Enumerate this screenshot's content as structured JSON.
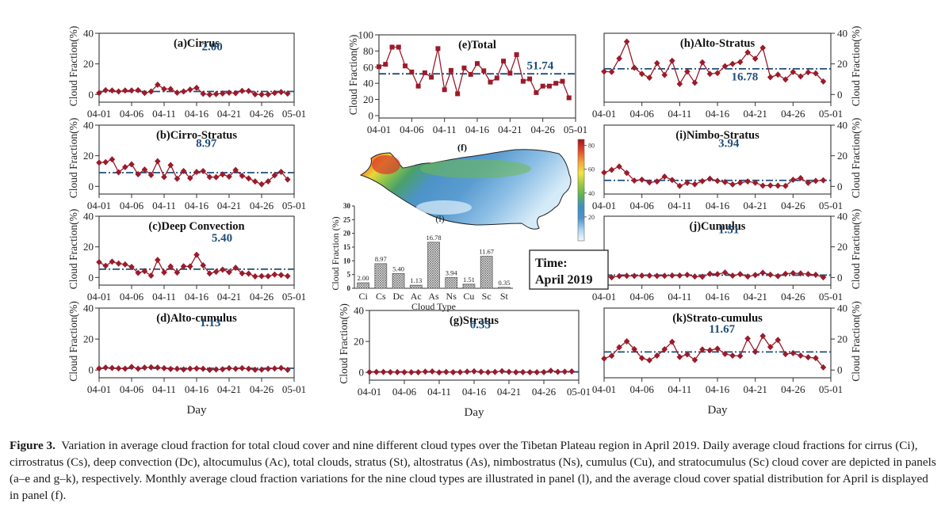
{
  "figure": {
    "day_label": "Day",
    "ylabel": "Cloud Fraction(%)",
    "x_ticks": [
      "04-01",
      "04-06",
      "04-11",
      "04-16",
      "04-21",
      "04-26",
      "05-01"
    ],
    "colors": {
      "series": "#9b1b2a",
      "mean_line": "#1f4e79",
      "mean_text": "#1f4e79"
    }
  },
  "chart_data": [
    {
      "id": "a",
      "type": "line",
      "title": "(a)Cirrus",
      "ylabel": "Cloud Fraction(%)",
      "xlabel": "",
      "ylim": [
        -5,
        40
      ],
      "yticks": [
        0,
        20,
        40
      ],
      "y_axis_side": "left",
      "marker": "diamond",
      "x": [
        "04-01",
        "04-02",
        "04-03",
        "04-04",
        "04-05",
        "04-06",
        "04-07",
        "04-08",
        "04-09",
        "04-10",
        "04-11",
        "04-12",
        "04-13",
        "04-14",
        "04-15",
        "04-16",
        "04-17",
        "04-18",
        "04-19",
        "04-20",
        "04-21",
        "04-22",
        "04-23",
        "04-24",
        "04-25",
        "04-26",
        "04-27",
        "04-28",
        "04-29",
        "04-30"
      ],
      "values": [
        1.0,
        2.8,
        2.6,
        2.0,
        2.6,
        2.6,
        2.8,
        1.0,
        2.0,
        6.4,
        3.6,
        3.6,
        1.2,
        2.0,
        3.2,
        4.4,
        0.5,
        0.0,
        0.3,
        0.7,
        1.2,
        0.9,
        2.4,
        2.3,
        0.2,
        0.0,
        0.1,
        1.0,
        1.6,
        0.6
      ],
      "mean": 2.0,
      "mean_label": "2.00"
    },
    {
      "id": "b",
      "type": "line",
      "title": "(b)Cirro-Stratus",
      "ylabel": "Cloud Fraction(%)",
      "xlabel": "",
      "ylim": [
        -5,
        40
      ],
      "yticks": [
        0,
        20,
        40
      ],
      "y_axis_side": "left",
      "marker": "diamond",
      "values": [
        15.5,
        15.8,
        17.6,
        9.2,
        12.6,
        14.4,
        7.9,
        11.0,
        7.4,
        16.4,
        6.1,
        13.9,
        5.0,
        10.0,
        5.4,
        9.4,
        10.0,
        6.1,
        6.0,
        7.8,
        6.4,
        10.7,
        6.9,
        5.2,
        3.2,
        1.4,
        3.3,
        7.2,
        9.5,
        4.5
      ],
      "mean": 8.97,
      "mean_label": "8.97"
    },
    {
      "id": "c",
      "type": "line",
      "title": "(c)Deep Convection",
      "ylabel": "Cloud Fraction(%)",
      "xlabel": "",
      "ylim": [
        -5,
        40
      ],
      "yticks": [
        0,
        20,
        40
      ],
      "y_axis_side": "left",
      "marker": "diamond",
      "values": [
        10.0,
        7.6,
        10.3,
        9.1,
        8.5,
        6.9,
        3.0,
        4.1,
        1.2,
        11.4,
        3.3,
        7.2,
        3.2,
        7.3,
        7.2,
        14.8,
        7.9,
        2.6,
        3.7,
        5.1,
        3.5,
        6.3,
        2.7,
        2.5,
        0.7,
        0.9,
        0.8,
        1.9,
        1.6,
        0.9
      ],
      "mean": 5.4,
      "mean_label": "5.40"
    },
    {
      "id": "d",
      "type": "line",
      "title": "(d)Alto-cumulus",
      "ylabel": "Cloud Fraction(%)",
      "xlabel": "Day",
      "ylim": [
        -5,
        40
      ],
      "yticks": [
        0,
        20,
        40
      ],
      "y_axis_side": "left",
      "marker": "diamond",
      "values": [
        1.0,
        1.6,
        1.3,
        1.1,
        0.9,
        2.0,
        0.9,
        1.6,
        1.8,
        1.6,
        1.2,
        0.7,
        0.8,
        0.4,
        0.9,
        1.0,
        0.8,
        0.1,
        0.4,
        0.5,
        1.2,
        0.8,
        1.2,
        0.8,
        0.2,
        0.3,
        0.8,
        1.0,
        1.3,
        0.1
      ],
      "mean": 1.13,
      "mean_label": "1.13"
    },
    {
      "id": "e",
      "type": "line",
      "title": "(e)Total",
      "ylabel": "Cloud Fraction(%)",
      "xlabel": "",
      "ylim": [
        -3,
        100
      ],
      "yticks": [
        0,
        20,
        40,
        60,
        80,
        100
      ],
      "y_axis_side": "left",
      "marker": "square",
      "values": [
        60.5,
        63.5,
        84.8,
        84.8,
        61.5,
        54.0,
        36.5,
        53.0,
        47.5,
        83.0,
        32.0,
        56.0,
        27.0,
        59.0,
        51.0,
        64.5,
        55.5,
        41.5,
        46.5,
        67.5,
        52.5,
        75.5,
        42.5,
        45.5,
        28.5,
        36.5,
        36.5,
        40.0,
        42.5,
        22.0
      ],
      "mean": 51.74,
      "mean_label": "51.74"
    },
    {
      "id": "g",
      "type": "line",
      "title": "(g)Stratus",
      "ylabel": "Cloud Fraction(%)",
      "xlabel": "Day",
      "ylim": [
        -5,
        40
      ],
      "yticks": [
        0,
        20,
        40
      ],
      "y_axis_side": "left",
      "marker": "diamond",
      "values": [
        0.2,
        0.3,
        0.3,
        0.2,
        0.2,
        0.1,
        0.1,
        0.1,
        0.5,
        0.6,
        0.0,
        0.3,
        0.1,
        0.2,
        0.5,
        0.7,
        0.4,
        0.1,
        0.3,
        0.8,
        0.4,
        0.1,
        0.2,
        0.1,
        0.1,
        0.2,
        1.1,
        0.4,
        0.5,
        0.6
      ],
      "mean": 0.35,
      "mean_label": "0.35"
    },
    {
      "id": "h",
      "type": "line",
      "title": "(h)Alto-Stratus",
      "ylabel": "Cloud Fraction(%)",
      "xlabel": "",
      "ylim": [
        -5,
        40
      ],
      "yticks": [
        0,
        20,
        40
      ],
      "y_axis_side": "right",
      "marker": "diamond",
      "values": [
        15.0,
        14.8,
        23.5,
        34.5,
        17.5,
        13.5,
        11.0,
        20.5,
        12.8,
        22.0,
        6.9,
        15.0,
        7.7,
        21.0,
        13.5,
        14.0,
        18.5,
        20.0,
        21.2,
        27.5,
        23.4,
        30.5,
        11.3,
        13.0,
        9.8,
        14.7,
        11.8,
        14.5,
        13.8,
        8.5
      ],
      "mean": 16.78,
      "mean_label": "16.78"
    },
    {
      "id": "i",
      "type": "line",
      "title": "(i)Nimbo-Stratus",
      "ylabel": "Cloud Fraction(%)",
      "xlabel": "",
      "ylim": [
        -5,
        40
      ],
      "yticks": [
        0,
        20,
        40
      ],
      "y_axis_side": "right",
      "marker": "diamond",
      "values": [
        9.0,
        10.8,
        13.0,
        8.8,
        3.8,
        4.4,
        2.6,
        3.2,
        6.4,
        4.2,
        0.3,
        2.3,
        1.4,
        3.4,
        5.0,
        3.6,
        2.8,
        1.3,
        2.4,
        3.2,
        2.4,
        0.5,
        0.6,
        0.5,
        0.3,
        4.3,
        5.4,
        2.3,
        3.6,
        4.0
      ],
      "mean": 3.94,
      "mean_label": "3.94"
    },
    {
      "id": "j",
      "type": "line",
      "title": "(j)Cumulus",
      "ylabel": "Cloud Fraction(%)",
      "xlabel": "",
      "ylim": [
        -5,
        40
      ],
      "yticks": [
        0,
        20,
        40
      ],
      "y_axis_side": "right",
      "marker": "diamond",
      "values": [
        0.9,
        0.1,
        0.9,
        1.1,
        1.0,
        1.2,
        1.2,
        1.0,
        1.1,
        1.3,
        1.3,
        1.7,
        0.6,
        0.5,
        2.4,
        2.2,
        3.2,
        1.2,
        2.2,
        0.6,
        1.6,
        3.1,
        1.8,
        0.9,
        2.4,
        2.8,
        2.6,
        2.2,
        1.7,
        0.1
      ],
      "mean": 1.51,
      "mean_label": "1.51"
    },
    {
      "id": "k",
      "type": "line",
      "title": "(k)Strato-cumulus",
      "ylabel": "Cloud Fraction(%)",
      "xlabel": "Day",
      "ylim": [
        -5,
        40
      ],
      "yticks": [
        0,
        20,
        40
      ],
      "y_axis_side": "right",
      "marker": "diamond",
      "values": [
        7.4,
        9.2,
        14.7,
        18.5,
        13.5,
        7.7,
        6.3,
        9.3,
        13.4,
        18.2,
        8.4,
        10.1,
        6.5,
        13.3,
        12.8,
        13.8,
        10.4,
        9.3,
        9.1,
        20.3,
        11.8,
        22.0,
        14.9,
        19.4,
        10.3,
        10.9,
        9.3,
        8.2,
        7.7,
        1.7
      ],
      "mean": 11.67,
      "mean_label": "11.67"
    },
    {
      "id": "l",
      "type": "bar",
      "title": "(l)",
      "xlabel": "Cloud Type",
      "ylabel": "Cloud Fraction (%)",
      "ylim": [
        0,
        30
      ],
      "yticks": [
        0,
        5,
        10,
        15,
        20,
        25,
        30
      ],
      "categories": [
        "Ci",
        "Cs",
        "Dc",
        "Ac",
        "As",
        "Ns",
        "Cu",
        "Sc",
        "St"
      ],
      "values": [
        2.0,
        8.97,
        5.4,
        1.13,
        16.78,
        3.94,
        1.51,
        11.67,
        0.35
      ],
      "labels": [
        "2.00",
        "8.97",
        "5.40",
        "1.13",
        "16.78",
        "3.94",
        "1.51",
        "11.67",
        "0.35"
      ]
    },
    {
      "id": "f",
      "type": "heatmap",
      "title": "(f)",
      "description": "Spatial distribution of average cloud cover over the Tibetan Plateau, April 2019",
      "colorbar_ticks": [
        20,
        40,
        60,
        80
      ],
      "colorbar_range": [
        0,
        85
      ],
      "colormap": [
        "#f4fbff",
        "#a9d4ef",
        "#4f93cc",
        "#3d8ec5",
        "#5bb15a",
        "#9cc93f",
        "#f3e640",
        "#f5a33a",
        "#e2492a",
        "#a0141c"
      ]
    }
  ],
  "time_box": {
    "line1": "Time:",
    "line2": "April 2019"
  },
  "caption": {
    "label": "Figure 3.",
    "text": "Variation in average cloud fraction for total cloud cover and nine different cloud types over the Tibetan Plateau region in April 2019. Daily average cloud fractions for cirrus (Ci), cirrostratus (Cs), deep convection (Dc), altocumulus (Ac), total clouds, stratus (St), altostratus (As), nimbostratus (Ns), cumulus (Cu), and stratocumulus (Sc) cloud cover are depicted in panels (a–e and g–k), respectively. Monthly average cloud fraction variations for the nine cloud types are illustrated in panel (l), and the average cloud cover spatial distribution for April is displayed in panel (f)."
  }
}
